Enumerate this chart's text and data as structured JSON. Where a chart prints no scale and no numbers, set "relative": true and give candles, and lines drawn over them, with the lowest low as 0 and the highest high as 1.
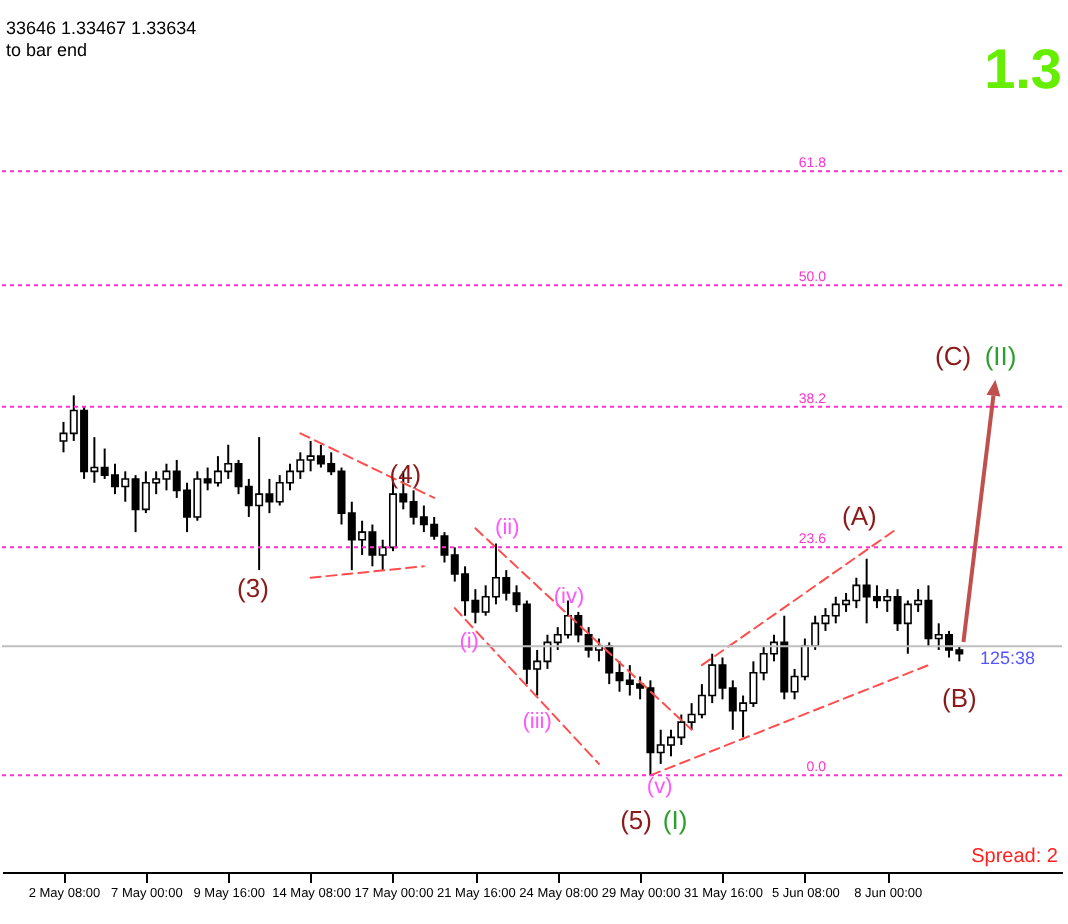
{
  "chart_data": {
    "type": "candlestick",
    "relative": true,
    "color": "#000000",
    "categories": [
      "2 May 08:00",
      null,
      null,
      null,
      null,
      null,
      null,
      null,
      "7 May 00:00",
      null,
      null,
      null,
      null,
      null,
      null,
      null,
      "9 May 16:00",
      null,
      null,
      null,
      null,
      null,
      null,
      null,
      "14 May 08:00",
      null,
      null,
      null,
      null,
      null,
      null,
      null,
      "17 May 00:00",
      null,
      null,
      null,
      null,
      null,
      null,
      null,
      "21 May 16:00",
      null,
      null,
      null,
      null,
      null,
      null,
      null,
      "24 May 08:00",
      null,
      null,
      null,
      null,
      null,
      null,
      null,
      "29 May 00:00",
      null,
      null,
      null,
      null,
      null,
      null,
      null,
      "31 May 16:00",
      null,
      null,
      null,
      null,
      null,
      null,
      null,
      "5 Jun 08:00",
      null,
      null,
      null,
      null,
      null,
      null,
      null,
      "8 Jun 00:00",
      null,
      null,
      null,
      null,
      null,
      null,
      null
    ],
    "ohlc": [
      [
        0.88,
        0.93,
        0.85,
        0.9
      ],
      [
        0.9,
        1.0,
        0.88,
        0.96
      ],
      [
        0.96,
        0.97,
        0.78,
        0.8
      ],
      [
        0.8,
        0.89,
        0.77,
        0.81
      ],
      [
        0.81,
        0.86,
        0.78,
        0.79
      ],
      [
        0.79,
        0.82,
        0.74,
        0.76
      ],
      [
        0.76,
        0.8,
        0.72,
        0.78
      ],
      [
        0.78,
        0.79,
        0.64,
        0.7
      ],
      [
        0.7,
        0.8,
        0.69,
        0.77
      ],
      [
        0.77,
        0.8,
        0.74,
        0.78
      ],
      [
        0.78,
        0.82,
        0.75,
        0.8
      ],
      [
        0.8,
        0.83,
        0.73,
        0.75
      ],
      [
        0.75,
        0.77,
        0.64,
        0.68
      ],
      [
        0.68,
        0.8,
        0.67,
        0.78
      ],
      [
        0.78,
        0.81,
        0.75,
        0.77
      ],
      [
        0.77,
        0.84,
        0.76,
        0.8
      ],
      [
        0.8,
        0.87,
        0.78,
        0.82
      ],
      [
        0.82,
        0.83,
        0.74,
        0.76
      ],
      [
        0.76,
        0.78,
        0.68,
        0.71
      ],
      [
        0.71,
        0.89,
        0.54,
        0.74
      ],
      [
        0.74,
        0.78,
        0.69,
        0.72
      ],
      [
        0.72,
        0.79,
        0.71,
        0.77
      ],
      [
        0.77,
        0.82,
        0.75,
        0.8
      ],
      [
        0.8,
        0.85,
        0.78,
        0.83
      ],
      [
        0.83,
        0.88,
        0.8,
        0.84
      ],
      [
        0.84,
        0.87,
        0.81,
        0.82
      ],
      [
        0.82,
        0.85,
        0.79,
        0.8
      ],
      [
        0.8,
        0.81,
        0.66,
        0.69
      ],
      [
        0.69,
        0.72,
        0.54,
        0.62
      ],
      [
        0.62,
        0.67,
        0.58,
        0.64
      ],
      [
        0.64,
        0.66,
        0.55,
        0.58
      ],
      [
        0.58,
        0.62,
        0.54,
        0.6
      ],
      [
        0.6,
        0.78,
        0.59,
        0.74
      ],
      [
        0.74,
        0.8,
        0.7,
        0.72
      ],
      [
        0.72,
        0.75,
        0.66,
        0.68
      ],
      [
        0.68,
        0.71,
        0.64,
        0.66
      ],
      [
        0.66,
        0.68,
        0.62,
        0.63
      ],
      [
        0.63,
        0.64,
        0.56,
        0.58
      ],
      [
        0.58,
        0.6,
        0.51,
        0.53
      ],
      [
        0.53,
        0.55,
        0.42,
        0.46
      ],
      [
        0.46,
        0.49,
        0.4,
        0.43
      ],
      [
        0.43,
        0.5,
        0.42,
        0.47
      ],
      [
        0.47,
        0.61,
        0.45,
        0.52
      ],
      [
        0.52,
        0.54,
        0.46,
        0.48
      ],
      [
        0.48,
        0.5,
        0.43,
        0.45
      ],
      [
        0.45,
        0.46,
        0.24,
        0.28
      ],
      [
        0.28,
        0.33,
        0.21,
        0.3
      ],
      [
        0.3,
        0.37,
        0.28,
        0.35
      ],
      [
        0.35,
        0.39,
        0.33,
        0.37
      ],
      [
        0.37,
        0.46,
        0.36,
        0.42
      ],
      [
        0.42,
        0.43,
        0.35,
        0.37
      ],
      [
        0.37,
        0.39,
        0.31,
        0.33
      ],
      [
        0.33,
        0.36,
        0.3,
        0.34
      ],
      [
        0.34,
        0.35,
        0.24,
        0.27
      ],
      [
        0.27,
        0.3,
        0.22,
        0.25
      ],
      [
        0.25,
        0.29,
        0.21,
        0.24
      ],
      [
        0.24,
        0.26,
        0.2,
        0.23
      ],
      [
        0.23,
        0.25,
        0.0,
        0.06
      ],
      [
        0.06,
        0.12,
        0.03,
        0.08
      ],
      [
        0.08,
        0.12,
        0.05,
        0.1
      ],
      [
        0.1,
        0.16,
        0.08,
        0.14
      ],
      [
        0.14,
        0.19,
        0.12,
        0.16
      ],
      [
        0.16,
        0.24,
        0.15,
        0.21
      ],
      [
        0.21,
        0.32,
        0.19,
        0.29
      ],
      [
        0.29,
        0.31,
        0.2,
        0.23
      ],
      [
        0.23,
        0.25,
        0.12,
        0.17
      ],
      [
        0.17,
        0.21,
        0.1,
        0.19
      ],
      [
        0.19,
        0.3,
        0.18,
        0.27
      ],
      [
        0.27,
        0.34,
        0.25,
        0.32
      ],
      [
        0.32,
        0.37,
        0.3,
        0.35
      ],
      [
        0.35,
        0.42,
        0.2,
        0.22
      ],
      [
        0.22,
        0.28,
        0.2,
        0.26
      ],
      [
        0.26,
        0.36,
        0.25,
        0.34
      ],
      [
        0.34,
        0.42,
        0.33,
        0.4
      ],
      [
        0.4,
        0.44,
        0.38,
        0.42
      ],
      [
        0.42,
        0.47,
        0.4,
        0.45
      ],
      [
        0.45,
        0.48,
        0.43,
        0.46
      ],
      [
        0.46,
        0.52,
        0.44,
        0.5
      ],
      [
        0.5,
        0.57,
        0.4,
        0.47
      ],
      [
        0.47,
        0.5,
        0.44,
        0.46
      ],
      [
        0.46,
        0.49,
        0.43,
        0.47
      ],
      [
        0.47,
        0.49,
        0.38,
        0.4
      ],
      [
        0.4,
        0.46,
        0.32,
        0.45
      ],
      [
        0.45,
        0.49,
        0.43,
        0.46
      ],
      [
        0.46,
        0.5,
        0.34,
        0.36
      ],
      [
        0.36,
        0.4,
        0.33,
        0.37
      ],
      [
        0.37,
        0.38,
        0.31,
        0.33
      ],
      [
        0.33,
        0.34,
        0.3,
        0.32
      ]
    ],
    "series": [
      {
        "type": "line",
        "color": "#ff4d4d",
        "line_style": "dashed",
        "values": [
          null,
          null,
          null,
          null,
          null,
          null,
          null,
          null,
          null,
          null,
          null,
          null,
          null,
          null,
          null,
          null,
          null,
          null,
          null,
          null,
          null,
          null,
          null,
          0.9,
          null,
          null,
          null,
          null,
          null,
          null,
          null,
          null,
          null,
          null,
          null,
          null,
          0.73,
          null,
          null,
          null,
          null,
          null,
          null,
          null,
          null,
          null,
          null,
          null,
          null,
          null,
          null,
          null,
          null,
          null,
          null,
          null,
          null,
          null,
          null,
          null,
          null,
          null,
          null,
          null,
          null,
          null,
          null,
          null,
          null,
          null,
          null,
          null,
          null,
          null,
          null,
          null,
          null,
          null,
          null,
          null,
          null,
          null,
          null,
          null,
          null,
          null,
          null,
          null
        ]
      },
      {
        "type": "line",
        "color": "#ff4d4d",
        "line_style": "dashed",
        "values": [
          null,
          null,
          null,
          null,
          null,
          null,
          null,
          null,
          null,
          null,
          null,
          null,
          null,
          null,
          null,
          null,
          null,
          null,
          null,
          null,
          null,
          null,
          null,
          null,
          0.52,
          null,
          null,
          null,
          null,
          null,
          null,
          null,
          null,
          null,
          null,
          0.55,
          null,
          null,
          null,
          null,
          null,
          null,
          null,
          null,
          null,
          null,
          null,
          null,
          null,
          null,
          null,
          null,
          null,
          null,
          null,
          null,
          null,
          null,
          null,
          null,
          null,
          null,
          null,
          null,
          null,
          null,
          null,
          null,
          null,
          null,
          null,
          null,
          null,
          null,
          null,
          null,
          null,
          null,
          null,
          null,
          null,
          null,
          null,
          null,
          null,
          null,
          null,
          null
        ]
      },
      {
        "type": "line",
        "color": "#ff4d4d",
        "line_style": "dashed",
        "values": [
          null,
          null,
          null,
          null,
          null,
          null,
          null,
          null,
          null,
          null,
          null,
          null,
          null,
          null,
          null,
          null,
          null,
          null,
          null,
          null,
          null,
          null,
          null,
          null,
          null,
          null,
          null,
          null,
          null,
          null,
          null,
          null,
          null,
          null,
          null,
          null,
          null,
          null,
          null,
          null,
          0.65,
          null,
          null,
          null,
          null,
          null,
          null,
          null,
          null,
          null,
          null,
          null,
          null,
          null,
          null,
          null,
          null,
          null,
          null,
          null,
          null,
          0.12,
          null,
          null,
          null,
          null,
          null,
          null,
          null,
          null,
          null,
          null,
          null,
          null,
          null,
          null,
          null,
          null,
          null,
          null,
          null,
          null,
          null,
          null,
          null,
          null,
          null,
          null
        ]
      },
      {
        "type": "line",
        "color": "#ff4d4d",
        "line_style": "dashed",
        "values": [
          null,
          null,
          null,
          null,
          null,
          null,
          null,
          null,
          null,
          null,
          null,
          null,
          null,
          null,
          null,
          null,
          null,
          null,
          null,
          null,
          null,
          null,
          null,
          null,
          null,
          null,
          null,
          null,
          null,
          null,
          null,
          null,
          null,
          null,
          null,
          null,
          null,
          null,
          0.44,
          null,
          null,
          null,
          null,
          null,
          null,
          null,
          null,
          null,
          null,
          null,
          null,
          null,
          0.03,
          null,
          null,
          null,
          null,
          null,
          null,
          null,
          null,
          null,
          null,
          null,
          null,
          null,
          null,
          null,
          null,
          null,
          null,
          null,
          null,
          null,
          null,
          null,
          null,
          null,
          null,
          null,
          null,
          null,
          null,
          null,
          null,
          null,
          null,
          null
        ]
      },
      {
        "type": "line",
        "color": "#ff4d4d",
        "line_style": "dashed",
        "values": [
          null,
          null,
          null,
          null,
          null,
          null,
          null,
          null,
          null,
          null,
          null,
          null,
          null,
          null,
          null,
          null,
          null,
          null,
          null,
          null,
          null,
          null,
          null,
          null,
          null,
          null,
          null,
          null,
          null,
          null,
          null,
          null,
          null,
          null,
          null,
          null,
          null,
          null,
          null,
          null,
          null,
          null,
          null,
          null,
          null,
          null,
          null,
          null,
          null,
          null,
          null,
          null,
          null,
          null,
          null,
          null,
          null,
          null,
          null,
          null,
          null,
          null,
          0.29,
          null,
          null,
          null,
          null,
          null,
          null,
          null,
          null,
          null,
          null,
          null,
          null,
          null,
          null,
          null,
          null,
          null,
          null,
          0.65,
          null,
          null,
          null,
          null,
          null,
          null
        ]
      },
      {
        "type": "line",
        "color": "#ff4d4d",
        "line_style": "dashed",
        "values": [
          null,
          null,
          null,
          null,
          null,
          null,
          null,
          null,
          null,
          null,
          null,
          null,
          null,
          null,
          null,
          null,
          null,
          null,
          null,
          null,
          null,
          null,
          null,
          null,
          null,
          null,
          null,
          null,
          null,
          null,
          null,
          null,
          null,
          null,
          null,
          null,
          null,
          null,
          null,
          null,
          null,
          null,
          null,
          null,
          null,
          null,
          null,
          null,
          null,
          null,
          null,
          null,
          null,
          null,
          null,
          null,
          null,
          0.0,
          null,
          null,
          null,
          null,
          null,
          null,
          null,
          null,
          null,
          null,
          null,
          null,
          null,
          null,
          null,
          null,
          null,
          null,
          null,
          null,
          null,
          null,
          null,
          null,
          null,
          null,
          0.29,
          null,
          null,
          null
        ]
      }
    ],
    "ref_lines": [
      {
        "axis": "y",
        "value": 0.0,
        "color": "#ff33cc",
        "line_style": "dotted"
      },
      {
        "axis": "y",
        "value": 0.6,
        "color": "#ff33cc",
        "line_style": "dotted"
      },
      {
        "axis": "y",
        "value": 0.97,
        "color": "#ff33cc",
        "line_style": "dotted"
      },
      {
        "axis": "y",
        "value": 1.29,
        "color": "#ff33cc",
        "line_style": "dotted"
      },
      {
        "axis": "y",
        "value": 1.59,
        "color": "#ff33cc",
        "line_style": "dotted"
      },
      {
        "axis": "y",
        "value": 0.34,
        "color": "#c0c0c0",
        "line_style": "solid"
      }
    ],
    "annotations": [
      "33646 1.33467 1.33634",
      "to bar end",
      "1.3",
      "(3)",
      "(4)",
      "(i)",
      "(ii)",
      "(iii)",
      "(iv)",
      "(v)",
      "(5)",
      "(I)",
      "(A)",
      "(B)",
      "(C)",
      "(II)",
      "125:38",
      "Spread: 2",
      {
        "text": "0.0",
        "y": 0.0
      },
      {
        "text": "23.6",
        "y": 0.6
      },
      {
        "text": "38.2",
        "y": 0.97
      },
      {
        "text": "50.0",
        "y": 1.29
      },
      {
        "text": "61.8",
        "y": 1.59
      }
    ]
  }
}
